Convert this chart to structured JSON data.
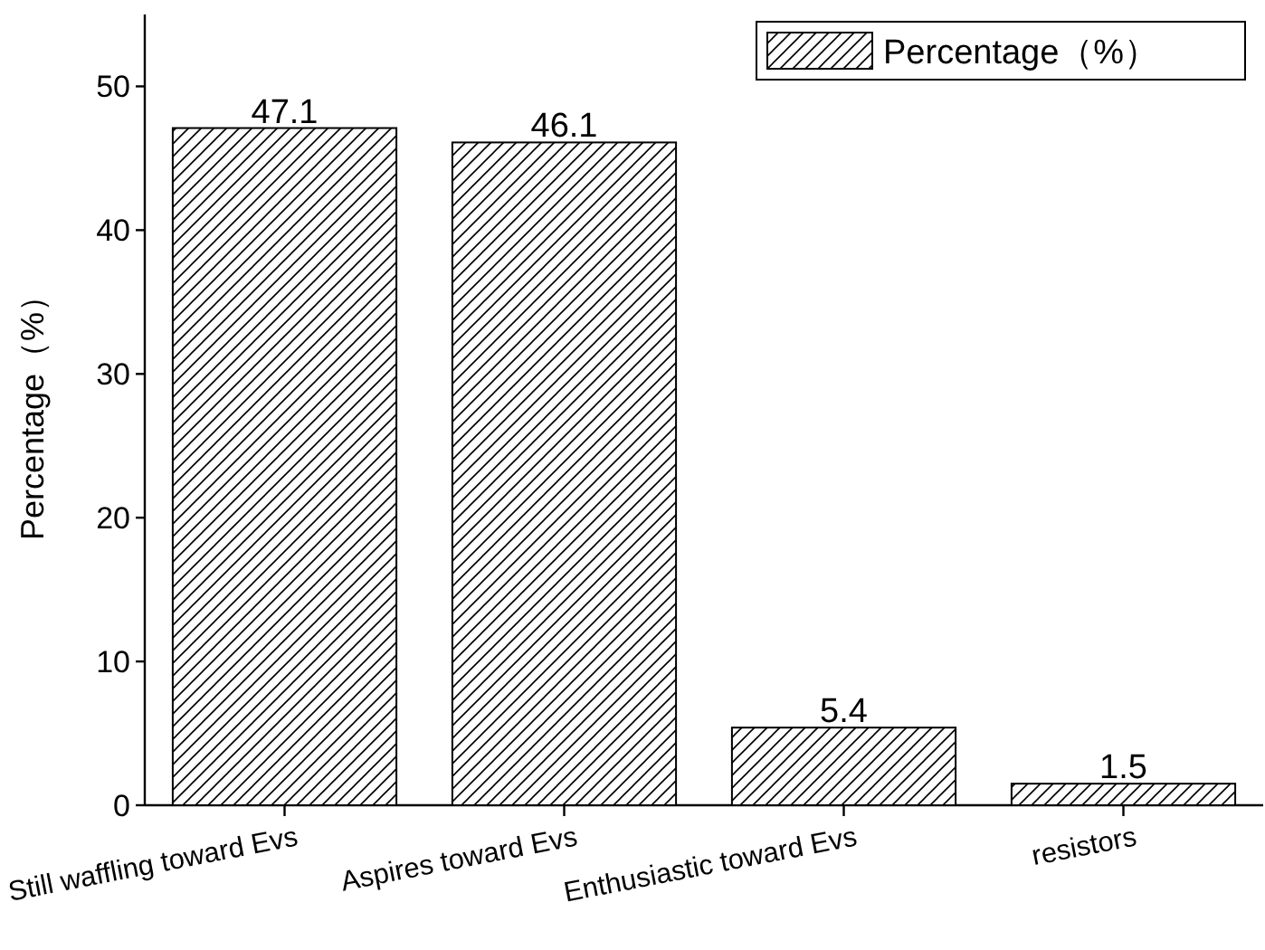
{
  "chart_data": {
    "type": "bar",
    "ylabel": "Percentage（%）",
    "categories": [
      "Still waffling toward Evs",
      "Aspires toward Evs",
      "Enthusiastic toward Evs",
      "resistors"
    ],
    "series": [
      {
        "name": "Percentage（%）",
        "color": "#000000",
        "values": [
          47.1,
          46.1,
          5.4,
          1.5
        ]
      }
    ],
    "ylim": [
      0,
      55
    ],
    "yticks": [
      0,
      10,
      20,
      30,
      40,
      50
    ],
    "data_labels": true,
    "legend": "top right",
    "grid": false
  }
}
